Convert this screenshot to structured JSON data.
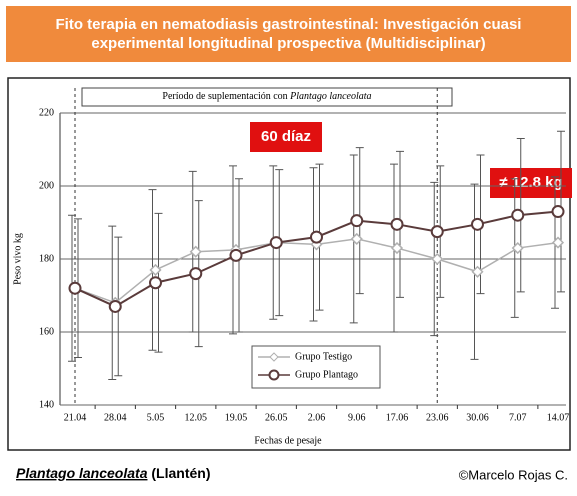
{
  "title": "Fito terapia en nematodiasis gastrointestinal: Investigación cuasi experimental longitudinal prospectiva (Multidisciplinar)",
  "chart_data": {
    "type": "line",
    "period_label": [
      "Período de suplementación con",
      "Plantago lanceolata"
    ],
    "period": [
      "21.04",
      "23.06"
    ],
    "annotations": [
      "60 díaz",
      "≠ 12.8 kg"
    ],
    "xlabel": "Fechas de pesaje",
    "ylabel": "Peso vivo kg",
    "categories": [
      "21.04",
      "28.04",
      "5.05",
      "12.05",
      "19.05",
      "26.05",
      "2.06",
      "9.06",
      "17.06",
      "23.06",
      "30.06",
      "7.07",
      "14.07"
    ],
    "series": [
      {
        "name": "Grupo Testigo",
        "color": "#b0b0b0",
        "marker": "diamond",
        "values": [
          172,
          168,
          177,
          182,
          182.5,
          184.5,
          184,
          185.5,
          183,
          180,
          176.5,
          183,
          184.5
        ],
        "errors": [
          20,
          21,
          22,
          22,
          23,
          21,
          21,
          23,
          23,
          21,
          24,
          19,
          18
        ]
      },
      {
        "name": "Grupo Plantago",
        "color": "#5a3b3b",
        "marker": "circle",
        "values": [
          172,
          167,
          173.5,
          176,
          181,
          184.5,
          186,
          190.5,
          189.5,
          187.5,
          189.5,
          192,
          193
        ],
        "errors": [
          19,
          19,
          19,
          20,
          21,
          20,
          20,
          20,
          20,
          18,
          19,
          21,
          22
        ]
      }
    ],
    "ylim": [
      140,
      220
    ],
    "yticks": [
      140,
      160,
      180,
      200,
      220
    ],
    "grid": true
  },
  "footer": {
    "species": "Plantago lanceolata",
    "common": "(Llantén)",
    "credit": "©Marcelo Rojas C."
  }
}
